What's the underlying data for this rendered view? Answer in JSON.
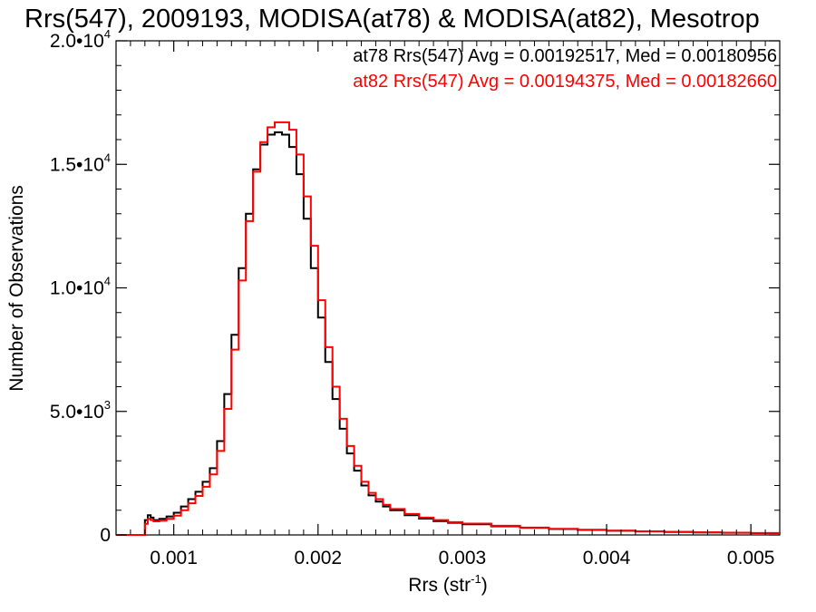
{
  "chart_data": {
    "type": "line",
    "title": "Rrs(547), 2009193, MODISA(at78) & MODISA(at82), Mesotrop",
    "xlabel": {
      "base": "Rrs (str",
      "sup": "-1",
      "end": ")"
    },
    "ylabel": "Number of Observations",
    "xlim": [
      0.0006,
      0.0052
    ],
    "ylim": [
      0,
      20000
    ],
    "x_ticks": [
      {
        "value": 0.001,
        "label": "0.001"
      },
      {
        "value": 0.002,
        "label": "0.002"
      },
      {
        "value": 0.003,
        "label": "0.003"
      },
      {
        "value": 0.004,
        "label": "0.004"
      },
      {
        "value": 0.005,
        "label": "0.005"
      }
    ],
    "y_ticks": [
      {
        "value": 0,
        "mant": "0",
        "exp": ""
      },
      {
        "value": 5000,
        "mant": "5.0•10",
        "exp": "3"
      },
      {
        "value": 10000,
        "mant": "1.0•10",
        "exp": "4"
      },
      {
        "value": 15000,
        "mant": "1.5•10",
        "exp": "4"
      },
      {
        "value": 20000,
        "mant": "2.0•10",
        "exp": "4"
      }
    ],
    "grid": false,
    "legend_position": "top-right",
    "annotations": [
      {
        "text": "at78 Rrs(547) Avg = 0.00192517, Med = 0.00180956",
        "color": "#000000"
      },
      {
        "text": "at82 Rrs(547) Avg = 0.00194375, Med = 0.00182660",
        "color": "#ff0000"
      }
    ],
    "series": [
      {
        "color": "#000000",
        "x": [
          0.0006,
          0.0007,
          0.00076,
          0.0008,
          0.00082,
          0.00084,
          0.00086,
          0.0009,
          0.00095,
          0.001,
          0.00105,
          0.0011,
          0.00115,
          0.0012,
          0.00125,
          0.0013,
          0.00135,
          0.0014,
          0.00145,
          0.0015,
          0.00155,
          0.0016,
          0.00165,
          0.0017,
          0.00175,
          0.0018,
          0.00185,
          0.0019,
          0.00195,
          0.002,
          0.00205,
          0.0021,
          0.00215,
          0.0022,
          0.00225,
          0.0023,
          0.00235,
          0.0024,
          0.00245,
          0.0025,
          0.0026,
          0.0027,
          0.0028,
          0.0029,
          0.003,
          0.0032,
          0.0034,
          0.0036,
          0.0038,
          0.004,
          0.0042,
          0.0044,
          0.0046,
          0.0048,
          0.005,
          0.0052
        ],
        "y": [
          0,
          0,
          0,
          600,
          800,
          700,
          600,
          650,
          750,
          900,
          1150,
          1450,
          1750,
          2150,
          2700,
          3800,
          5700,
          8100,
          10800,
          13000,
          14800,
          15800,
          16200,
          16300,
          16200,
          15700,
          14600,
          12800,
          10800,
          8800,
          7000,
          5500,
          4300,
          3300,
          2600,
          2000,
          1600,
          1350,
          1150,
          1000,
          800,
          660,
          560,
          490,
          430,
          350,
          290,
          240,
          200,
          170,
          140,
          120,
          100,
          85,
          75,
          65
        ]
      },
      {
        "color": "#ff0000",
        "x": [
          0.0006,
          0.0007,
          0.00076,
          0.0008,
          0.00082,
          0.00084,
          0.00086,
          0.0009,
          0.00095,
          0.001,
          0.00105,
          0.0011,
          0.00115,
          0.0012,
          0.00125,
          0.0013,
          0.00135,
          0.0014,
          0.00145,
          0.0015,
          0.00155,
          0.0016,
          0.00165,
          0.0017,
          0.00175,
          0.0018,
          0.00185,
          0.0019,
          0.00195,
          0.002,
          0.00205,
          0.0021,
          0.00215,
          0.0022,
          0.00225,
          0.0023,
          0.00235,
          0.0024,
          0.00245,
          0.0025,
          0.0026,
          0.0027,
          0.0028,
          0.0029,
          0.003,
          0.0032,
          0.0034,
          0.0036,
          0.0038,
          0.004,
          0.0042,
          0.0044,
          0.0046,
          0.0048,
          0.005,
          0.0052
        ],
        "y": [
          0,
          0,
          0,
          450,
          650,
          600,
          550,
          580,
          650,
          780,
          1000,
          1280,
          1580,
          1950,
          2450,
          3400,
          5100,
          7500,
          10300,
          12700,
          14700,
          15900,
          16500,
          16700,
          16700,
          16400,
          15400,
          13700,
          11700,
          9500,
          7600,
          6000,
          4700,
          3600,
          2800,
          2150,
          1700,
          1450,
          1220,
          1050,
          850,
          700,
          600,
          520,
          460,
          370,
          300,
          250,
          210,
          175,
          145,
          125,
          105,
          90,
          78,
          68
        ]
      }
    ]
  }
}
